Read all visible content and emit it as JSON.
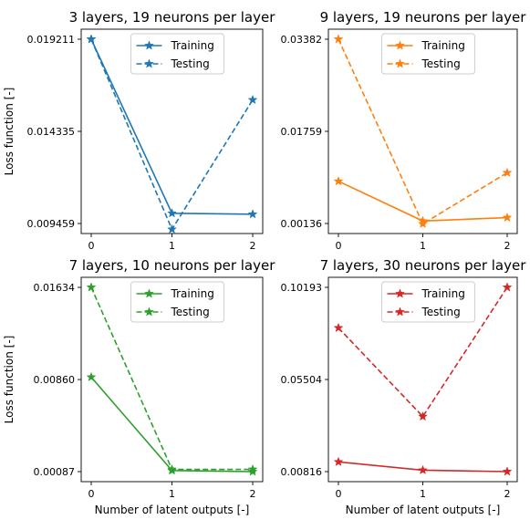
{
  "chart_data": [
    {
      "type": "line",
      "title": "3 layers, 19 neurons per layer",
      "xlabel": "",
      "ylabel": "Loss function [-]",
      "x": [
        0,
        1,
        2
      ],
      "xticks": [
        "0",
        "1",
        "2"
      ],
      "yticks": [
        0.009459,
        0.014335,
        0.019211
      ],
      "ytick_labels": [
        "0.009459",
        "0.014335",
        "0.019211"
      ],
      "legend_position": "top-center",
      "color": "#1f77b4",
      "series": [
        {
          "name": "Training",
          "style": "solid",
          "values": [
            0.019211,
            0.01,
            0.00995
          ]
        },
        {
          "name": "Testing",
          "style": "dashed",
          "values": [
            0.019211,
            0.00915,
            0.016
          ]
        }
      ]
    },
    {
      "type": "line",
      "title": "9 layers, 19 neurons per layer",
      "xlabel": "",
      "ylabel": "",
      "x": [
        0,
        1,
        2
      ],
      "xticks": [
        "0",
        "1",
        "2"
      ],
      "yticks": [
        0.00136,
        0.01759,
        0.03382
      ],
      "ytick_labels": [
        "0.00136",
        "0.01759",
        "0.03382"
      ],
      "legend_position": "top-center",
      "color": "#ff7f0e",
      "series": [
        {
          "name": "Training",
          "style": "solid",
          "values": [
            0.0088,
            0.0018,
            0.0024
          ]
        },
        {
          "name": "Testing",
          "style": "dashed",
          "values": [
            0.03382,
            0.0013,
            0.0103
          ]
        }
      ]
    },
    {
      "type": "line",
      "title": "7 layers, 10 neurons per layer",
      "xlabel": "Number of latent outputs [-]",
      "ylabel": "Loss function [-]",
      "x": [
        0,
        1,
        2
      ],
      "xticks": [
        "0",
        "1",
        "2"
      ],
      "yticks": [
        0.00087,
        0.0086,
        0.01634
      ],
      "ytick_labels": [
        "0.00087",
        "0.00860",
        "0.01634"
      ],
      "legend_position": "top-center",
      "color": "#2ca02c",
      "series": [
        {
          "name": "Training",
          "style": "solid",
          "values": [
            0.0088,
            0.00096,
            0.00087
          ]
        },
        {
          "name": "Testing",
          "style": "dashed",
          "values": [
            0.01634,
            0.00106,
            0.00106
          ]
        }
      ]
    },
    {
      "type": "line",
      "title": "7 layers, 30 neurons per layer",
      "xlabel": "Number of latent outputs [-]",
      "ylabel": "",
      "x": [
        0,
        1,
        2
      ],
      "xticks": [
        "0",
        "1",
        "2"
      ],
      "yticks": [
        0.00816,
        0.05504,
        0.10193
      ],
      "ytick_labels": [
        "0.00816",
        "0.05504",
        "0.10193"
      ],
      "legend_position": "top-center",
      "color": "#d62728",
      "series": [
        {
          "name": "Training",
          "style": "solid",
          "values": [
            0.0131,
            0.0089,
            0.00816
          ]
        },
        {
          "name": "Testing",
          "style": "dashed",
          "values": [
            0.0813,
            0.0362,
            0.10193
          ]
        }
      ]
    }
  ]
}
